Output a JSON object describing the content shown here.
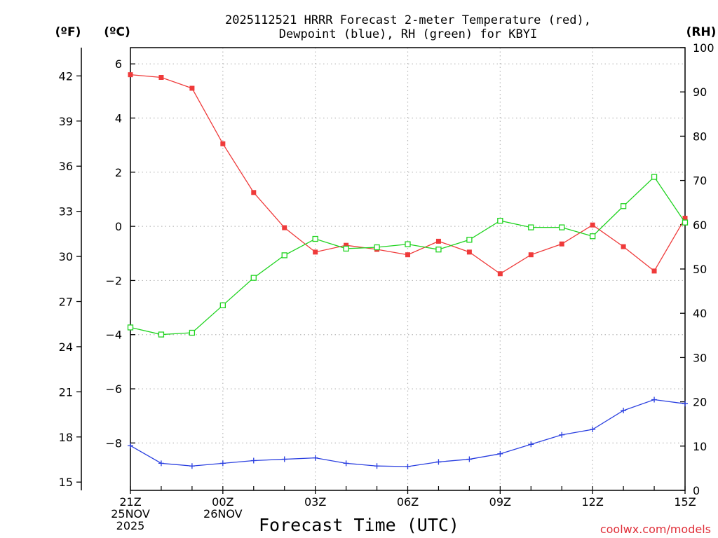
{
  "chart_data": {
    "type": "line",
    "title_line1": "2025112521 HRRR Forecast 2-meter Temperature (red),",
    "title_line2": "Dewpoint (blue), RH (green) for KBYI",
    "xlabel": "Forecast Time (UTC)",
    "credit": "coolwx.com/models",
    "unit_labels": {
      "fahrenheit": "(ºF)",
      "celsius": "(ºC)",
      "rh": "(RH)"
    },
    "hours": [
      0,
      1,
      2,
      3,
      4,
      5,
      6,
      7,
      8,
      9,
      10,
      11,
      12,
      13,
      14,
      15,
      16,
      17,
      18
    ],
    "xlim": [
      0,
      18
    ],
    "x_ticks": [
      {
        "hour": 0,
        "lines": [
          "21Z",
          "25NOV",
          "2025"
        ]
      },
      {
        "hour": 3,
        "lines": [
          "00Z",
          "26NOV"
        ]
      },
      {
        "hour": 6,
        "lines": [
          "03Z"
        ]
      },
      {
        "hour": 9,
        "lines": [
          "06Z"
        ]
      },
      {
        "hour": 12,
        "lines": [
          "09Z"
        ]
      },
      {
        "hour": 15,
        "lines": [
          "12Z"
        ]
      },
      {
        "hour": 18,
        "lines": [
          "15Z"
        ]
      }
    ],
    "celsius_axis": {
      "ylim": [
        -9.75,
        6.6
      ],
      "ticks": [
        6,
        4,
        2,
        0,
        -2,
        -4,
        -6,
        -8
      ],
      "tick_labels": [
        "6",
        "4",
        "2",
        "0",
        "−2",
        "−4",
        "−6",
        "−8"
      ]
    },
    "fahrenheit_axis": {
      "ticks": [
        42,
        39,
        36,
        33,
        30,
        27,
        24,
        21,
        18,
        15
      ],
      "tick_labels": [
        "42",
        "39",
        "36",
        "33",
        "30",
        "27",
        "24",
        "21",
        "18",
        "15"
      ]
    },
    "rh_axis": {
      "ylim": [
        0,
        100
      ],
      "ticks": [
        100,
        90,
        80,
        70,
        60,
        50,
        40,
        30,
        20,
        10,
        0
      ],
      "tick_labels": [
        "100",
        "90",
        "80",
        "70",
        "60",
        "50",
        "40",
        "30",
        "20",
        "10",
        "0"
      ]
    },
    "grid": true,
    "series": [
      {
        "name": "2-meter Temperature",
        "unit": "C",
        "color": "#ef3a3a",
        "marker": "filled-square",
        "values": [
          5.6,
          5.5,
          5.1,
          3.05,
          1.25,
          -0.05,
          -0.95,
          -0.7,
          -0.85,
          -1.05,
          -0.55,
          -0.95,
          -1.75,
          -1.05,
          -0.65,
          0.05,
          -0.75,
          -1.65,
          0.3
        ]
      },
      {
        "name": "Dewpoint",
        "unit": "C",
        "color": "#2a3fe0",
        "marker": "plus",
        "values": [
          -8.1,
          -8.75,
          -8.85,
          -8.75,
          -8.65,
          -8.6,
          -8.55,
          -8.75,
          -8.85,
          -8.87,
          -8.7,
          -8.6,
          -8.4,
          -8.05,
          -7.7,
          -7.5,
          -6.8,
          -6.4,
          -6.55
        ]
      },
      {
        "name": "RH",
        "unit": "%",
        "color": "#1fd31f",
        "marker": "open-square",
        "values": [
          36.8,
          35.2,
          35.6,
          41.8,
          48.0,
          53.1,
          56.8,
          54.6,
          54.9,
          55.6,
          54.4,
          56.6,
          60.9,
          59.4,
          59.4,
          57.4,
          64.2,
          70.8,
          60.5
        ]
      }
    ]
  }
}
